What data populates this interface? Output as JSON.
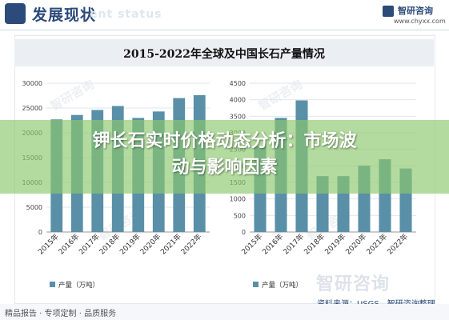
{
  "header": {
    "title": "发展现状",
    "subtitle": "ent status",
    "logo_name": "智研咨询",
    "logo_url": "www.chyxx.com"
  },
  "chart_title": "2015-2022年全球及中国长石产量情况",
  "chart_data": [
    {
      "type": "bar",
      "categories": [
        "2015年",
        "2016年",
        "2017年",
        "2018年",
        "2019年",
        "2020年",
        "2021年",
        "2022年"
      ],
      "series": [
        {
          "name": "产量（万吨）",
          "values": [
            22700,
            23600,
            24600,
            25400,
            23000,
            24300,
            27000,
            27600
          ]
        }
      ],
      "ylim": [
        0,
        30000
      ],
      "yticks": [
        0,
        5000,
        10000,
        15000,
        20000,
        25000,
        30000
      ],
      "grid": true,
      "legend": "bottom-left",
      "color": "#5a8fa8"
    },
    {
      "type": "bar",
      "categories": [
        "2015年",
        "2016年",
        "2017年",
        "2018年",
        "2019年",
        "2020年",
        "2021年",
        "2022年"
      ],
      "series": [
        {
          "name": "产量（万吨）",
          "values": [
            2600,
            3450,
            3980,
            1690,
            1690,
            2010,
            2200,
            1920
          ]
        }
      ],
      "ylim": [
        0,
        4500
      ],
      "yticks": [
        0,
        500,
        1000,
        1500,
        2000,
        2500,
        3000,
        3500,
        4000,
        4500
      ],
      "grid": true,
      "legend": "bottom-left",
      "color": "#5a8fa8"
    }
  ],
  "banner": {
    "line1": "钾长石实时价格动态分析：市场波",
    "line2": "动与影响因素"
  },
  "watermark": "智研咨询",
  "source": "资料来源：USGS，智研咨询整理",
  "footer": "精品报告 · 专项定制 · 品质服务"
}
